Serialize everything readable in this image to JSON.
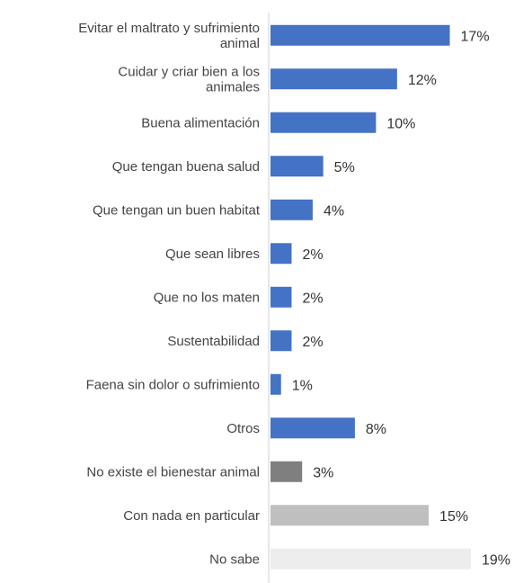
{
  "chart_data": {
    "type": "bar",
    "orientation": "horizontal",
    "categories": [
      [
        "Evitar el maltrato y sufrimiento",
        "animal"
      ],
      [
        "Cuidar y criar bien a los",
        "animales"
      ],
      [
        "Buena alimentación"
      ],
      [
        "Que tengan buena salud"
      ],
      [
        "Que tengan un buen habitat"
      ],
      [
        "Que sean libres"
      ],
      [
        "Que no los maten"
      ],
      [
        "Sustentabilidad"
      ],
      [
        "Faena sin dolor o sufrimiento"
      ],
      [
        "Otros"
      ],
      [
        "No existe el bienestar animal"
      ],
      [
        "Con nada en particular"
      ],
      [
        "No sabe"
      ]
    ],
    "values": [
      17,
      12,
      10,
      5,
      4,
      2,
      2,
      2,
      1,
      8,
      3,
      15,
      19
    ],
    "value_labels": [
      "17%",
      "12%",
      "10%",
      "5%",
      "4%",
      "2%",
      "2%",
      "2%",
      "1%",
      "8%",
      "3%",
      "15%",
      "19%"
    ],
    "bar_colors": [
      "#4472c4",
      "#4472c4",
      "#4472c4",
      "#4472c4",
      "#4472c4",
      "#4472c4",
      "#4472c4",
      "#4472c4",
      "#4472c4",
      "#4472c4",
      "#7f7f7f",
      "#bfbfbf",
      "#ededed"
    ],
    "xlim": [
      0,
      19
    ],
    "grid": false,
    "legend": "none"
  }
}
